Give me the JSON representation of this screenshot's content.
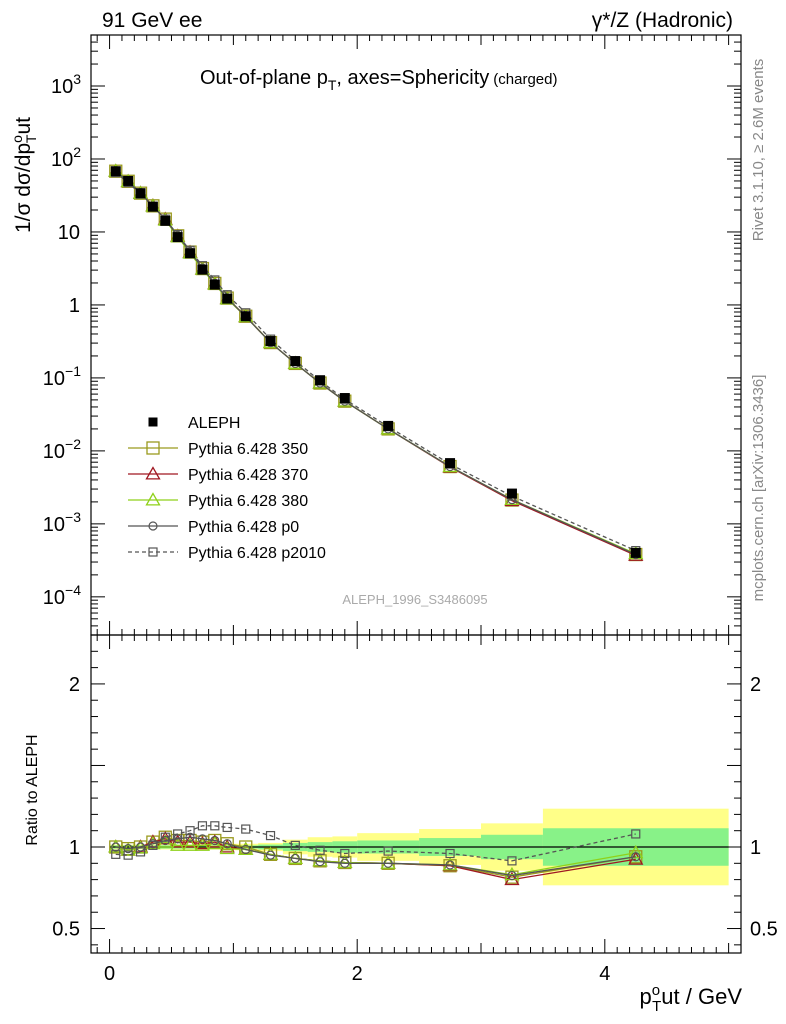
{
  "header": {
    "left": "91 GeV ee",
    "right": "γ*/Z (Hadronic)"
  },
  "side": {
    "rivet": "Rivet 3.1.10, ≥ 2.6M events",
    "mcplots": "mcplots.cern.ch [arXiv:1306.3436]"
  },
  "chart_data": [
    {
      "type": "scatter",
      "title": "Out-of-plane p_T, axes=Sphericity (charged)",
      "title_main": "Out-of-plane p",
      "title_sub": "T",
      "title_rest": ", axes=Sphericity",
      "title_small": "(charged)",
      "ylabel_main": "1/σ dσ/dp",
      "ylabel_sup": "o",
      "ylabel_sub": "T",
      "ylabel_end": "ut",
      "ylog": true,
      "ylim": [
        3e-05,
        5000
      ],
      "xlim": [
        -0.15,
        5.1
      ],
      "yticks": [
        {
          "v": 0.0001,
          "label": "10",
          "exp": "−4"
        },
        {
          "v": 0.001,
          "label": "10",
          "exp": "−3"
        },
        {
          "v": 0.01,
          "label": "10",
          "exp": "−2"
        },
        {
          "v": 0.1,
          "label": "10",
          "exp": "−1"
        },
        {
          "v": 1,
          "label": "1",
          "exp": ""
        },
        {
          "v": 10,
          "label": "10",
          "exp": ""
        },
        {
          "v": 100,
          "label": "10",
          "exp": "2"
        },
        {
          "v": 1000,
          "label": "10",
          "exp": "3"
        }
      ],
      "watermark": "ALEPH_1996_S3486095",
      "x": [
        0.05,
        0.15,
        0.25,
        0.35,
        0.45,
        0.55,
        0.65,
        0.75,
        0.85,
        0.95,
        1.1,
        1.3,
        1.5,
        1.7,
        1.9,
        2.25,
        2.75,
        3.25,
        4.25
      ],
      "series": [
        {
          "name": "ALEPH",
          "color": "#000000",
          "marker": "filled-square",
          "line": "none",
          "values": [
            68,
            50,
            34,
            22.2,
            14.2,
            8.5,
            5.1,
            3.05,
            1.9,
            1.22,
            0.7,
            0.32,
            0.17,
            0.093,
            0.053,
            0.022,
            0.0068,
            0.0026,
            0.0004
          ]
        },
        {
          "name": "Pythia 6.428 350",
          "color": "#9a9a1e",
          "marker": "open-square",
          "line": "solid",
          "values": [
            68,
            49.5,
            34,
            22.8,
            15,
            8.85,
            5.3,
            3.15,
            1.97,
            1.24,
            0.7,
            0.305,
            0.158,
            0.085,
            0.048,
            0.02,
            0.0061,
            0.00212,
            0.00038
          ]
        },
        {
          "name": "Pythia 6.428 370",
          "color": "#a01822",
          "marker": "open-triangle",
          "line": "solid",
          "values": [
            68,
            49,
            34,
            22.8,
            14.9,
            8.75,
            5.25,
            3.1,
            1.95,
            1.22,
            0.69,
            0.305,
            0.158,
            0.085,
            0.048,
            0.02,
            0.006,
            0.00208,
            0.00037
          ]
        },
        {
          "name": "Pythia 6.428 380",
          "color": "#8fd11a",
          "marker": "open-triangle",
          "line": "solid",
          "values": [
            68,
            49,
            33.8,
            22.6,
            14.6,
            8.6,
            5.15,
            3.08,
            1.93,
            1.21,
            0.69,
            0.305,
            0.158,
            0.085,
            0.048,
            0.02,
            0.0061,
            0.00216,
            0.00039
          ]
        },
        {
          "name": "Pythia 6.428 p0",
          "color": "#555555",
          "marker": "open-circle",
          "line": "solid",
          "values": [
            68,
            49.5,
            34,
            22.6,
            14.8,
            8.9,
            5.4,
            3.2,
            1.98,
            1.24,
            0.69,
            0.305,
            0.158,
            0.085,
            0.048,
            0.02,
            0.0061,
            0.00215,
            0.00038
          ]
        },
        {
          "name": "Pythia 6.428 p2010",
          "color": "#555555",
          "marker": "open-square-small",
          "line": "dashed",
          "values": [
            65,
            47.5,
            33,
            22.5,
            15,
            9.2,
            5.6,
            3.45,
            2.2,
            1.38,
            0.78,
            0.34,
            0.172,
            0.091,
            0.051,
            0.0215,
            0.0066,
            0.0024,
            0.00043
          ]
        }
      ]
    },
    {
      "type": "scatter",
      "ylabel": "Ratio to ALEPH",
      "xlabel_main": "p",
      "xlabel_sup": "o",
      "xlabel_sub": "T",
      "xlabel_end": "ut / GeV",
      "xlim": [
        -0.15,
        5.1
      ],
      "ylim": [
        0.35,
        2.3
      ],
      "yticks": [
        {
          "v": 0.5,
          "label": "0.5"
        },
        {
          "v": 1,
          "label": "1"
        },
        {
          "v": 2,
          "label": "2"
        }
      ],
      "xticks": [
        {
          "v": 0,
          "label": "0"
        },
        {
          "v": 2,
          "label": "2"
        },
        {
          "v": 4,
          "label": "4"
        }
      ],
      "bands": [
        {
          "x0": 0.0,
          "x1": 0.1,
          "g": [
            0.99,
            1.01
          ],
          "y": [
            0.985,
            1.015
          ]
        },
        {
          "x0": 0.1,
          "x1": 0.2,
          "g": [
            0.99,
            1.01
          ],
          "y": [
            0.985,
            1.015
          ]
        },
        {
          "x0": 0.2,
          "x1": 0.3,
          "g": [
            0.99,
            1.01
          ],
          "y": [
            0.985,
            1.015
          ]
        },
        {
          "x0": 0.3,
          "x1": 0.4,
          "g": [
            0.99,
            1.01
          ],
          "y": [
            0.985,
            1.015
          ]
        },
        {
          "x0": 0.4,
          "x1": 0.5,
          "g": [
            0.99,
            1.01
          ],
          "y": [
            0.985,
            1.015
          ]
        },
        {
          "x0": 0.5,
          "x1": 0.6,
          "g": [
            0.99,
            1.01
          ],
          "y": [
            0.985,
            1.015
          ]
        },
        {
          "x0": 0.6,
          "x1": 0.7,
          "g": [
            0.99,
            1.01
          ],
          "y": [
            0.985,
            1.015
          ]
        },
        {
          "x0": 0.7,
          "x1": 0.8,
          "g": [
            0.99,
            1.01
          ],
          "y": [
            0.985,
            1.015
          ]
        },
        {
          "x0": 0.8,
          "x1": 0.9,
          "g": [
            0.99,
            1.01
          ],
          "y": [
            0.985,
            1.015
          ]
        },
        {
          "x0": 0.9,
          "x1": 1.0,
          "g": [
            0.99,
            1.01
          ],
          "y": [
            0.985,
            1.015
          ]
        },
        {
          "x0": 1.0,
          "x1": 1.2,
          "g": [
            0.99,
            1.01
          ],
          "y": [
            0.98,
            1.02
          ]
        },
        {
          "x0": 1.2,
          "x1": 1.4,
          "g": [
            0.985,
            1.015
          ],
          "y": [
            0.975,
            1.025
          ]
        },
        {
          "x0": 1.4,
          "x1": 1.6,
          "g": [
            0.975,
            1.025
          ],
          "y": [
            0.955,
            1.045
          ]
        },
        {
          "x0": 1.6,
          "x1": 1.8,
          "g": [
            0.97,
            1.03
          ],
          "y": [
            0.94,
            1.06
          ]
        },
        {
          "x0": 1.8,
          "x1": 2.0,
          "g": [
            0.965,
            1.035
          ],
          "y": [
            0.935,
            1.065
          ]
        },
        {
          "x0": 2.0,
          "x1": 2.5,
          "g": [
            0.96,
            1.04
          ],
          "y": [
            0.915,
            1.085
          ]
        },
        {
          "x0": 2.5,
          "x1": 3.0,
          "g": [
            0.945,
            1.055
          ],
          "y": [
            0.89,
            1.11
          ]
        },
        {
          "x0": 3.0,
          "x1": 3.5,
          "g": [
            0.925,
            1.075
          ],
          "y": [
            0.855,
            1.145
          ]
        },
        {
          "x0": 3.5,
          "x1": 5.0,
          "g": [
            0.885,
            1.115
          ],
          "y": [
            0.765,
            1.235
          ]
        }
      ],
      "series": [
        {
          "name": "Pythia 6.428 350",
          "values": [
            1.0,
            0.99,
            1.0,
            1.03,
            1.06,
            1.04,
            1.04,
            1.03,
            1.04,
            1.02,
            1.0,
            0.955,
            0.93,
            0.915,
            0.905,
            0.9,
            0.885,
            0.815,
            0.94
          ]
        },
        {
          "name": "Pythia 6.428 370",
          "values": [
            1.0,
            0.98,
            1.0,
            1.03,
            1.05,
            1.03,
            1.03,
            1.02,
            1.03,
            1.0,
            0.985,
            0.955,
            0.93,
            0.915,
            0.905,
            0.9,
            0.885,
            0.8,
            0.925
          ]
        },
        {
          "name": "Pythia 6.428 380",
          "values": [
            1.0,
            0.98,
            0.995,
            1.02,
            1.03,
            1.01,
            1.01,
            1.01,
            1.02,
            0.99,
            0.985,
            0.955,
            0.93,
            0.915,
            0.905,
            0.9,
            0.89,
            0.83,
            0.965
          ]
        },
        {
          "name": "Pythia 6.428 p0",
          "values": [
            1.0,
            0.99,
            1.0,
            1.02,
            1.04,
            1.05,
            1.06,
            1.05,
            1.04,
            1.02,
            0.985,
            0.95,
            0.93,
            0.91,
            0.9,
            0.9,
            0.89,
            0.825,
            0.94
          ]
        },
        {
          "name": "Pythia 6.428 p2010",
          "values": [
            0.955,
            0.95,
            0.97,
            1.01,
            1.06,
            1.08,
            1.1,
            1.13,
            1.13,
            1.12,
            1.11,
            1.07,
            1.01,
            0.98,
            0.96,
            0.975,
            0.96,
            0.915,
            1.08
          ]
        }
      ]
    }
  ]
}
